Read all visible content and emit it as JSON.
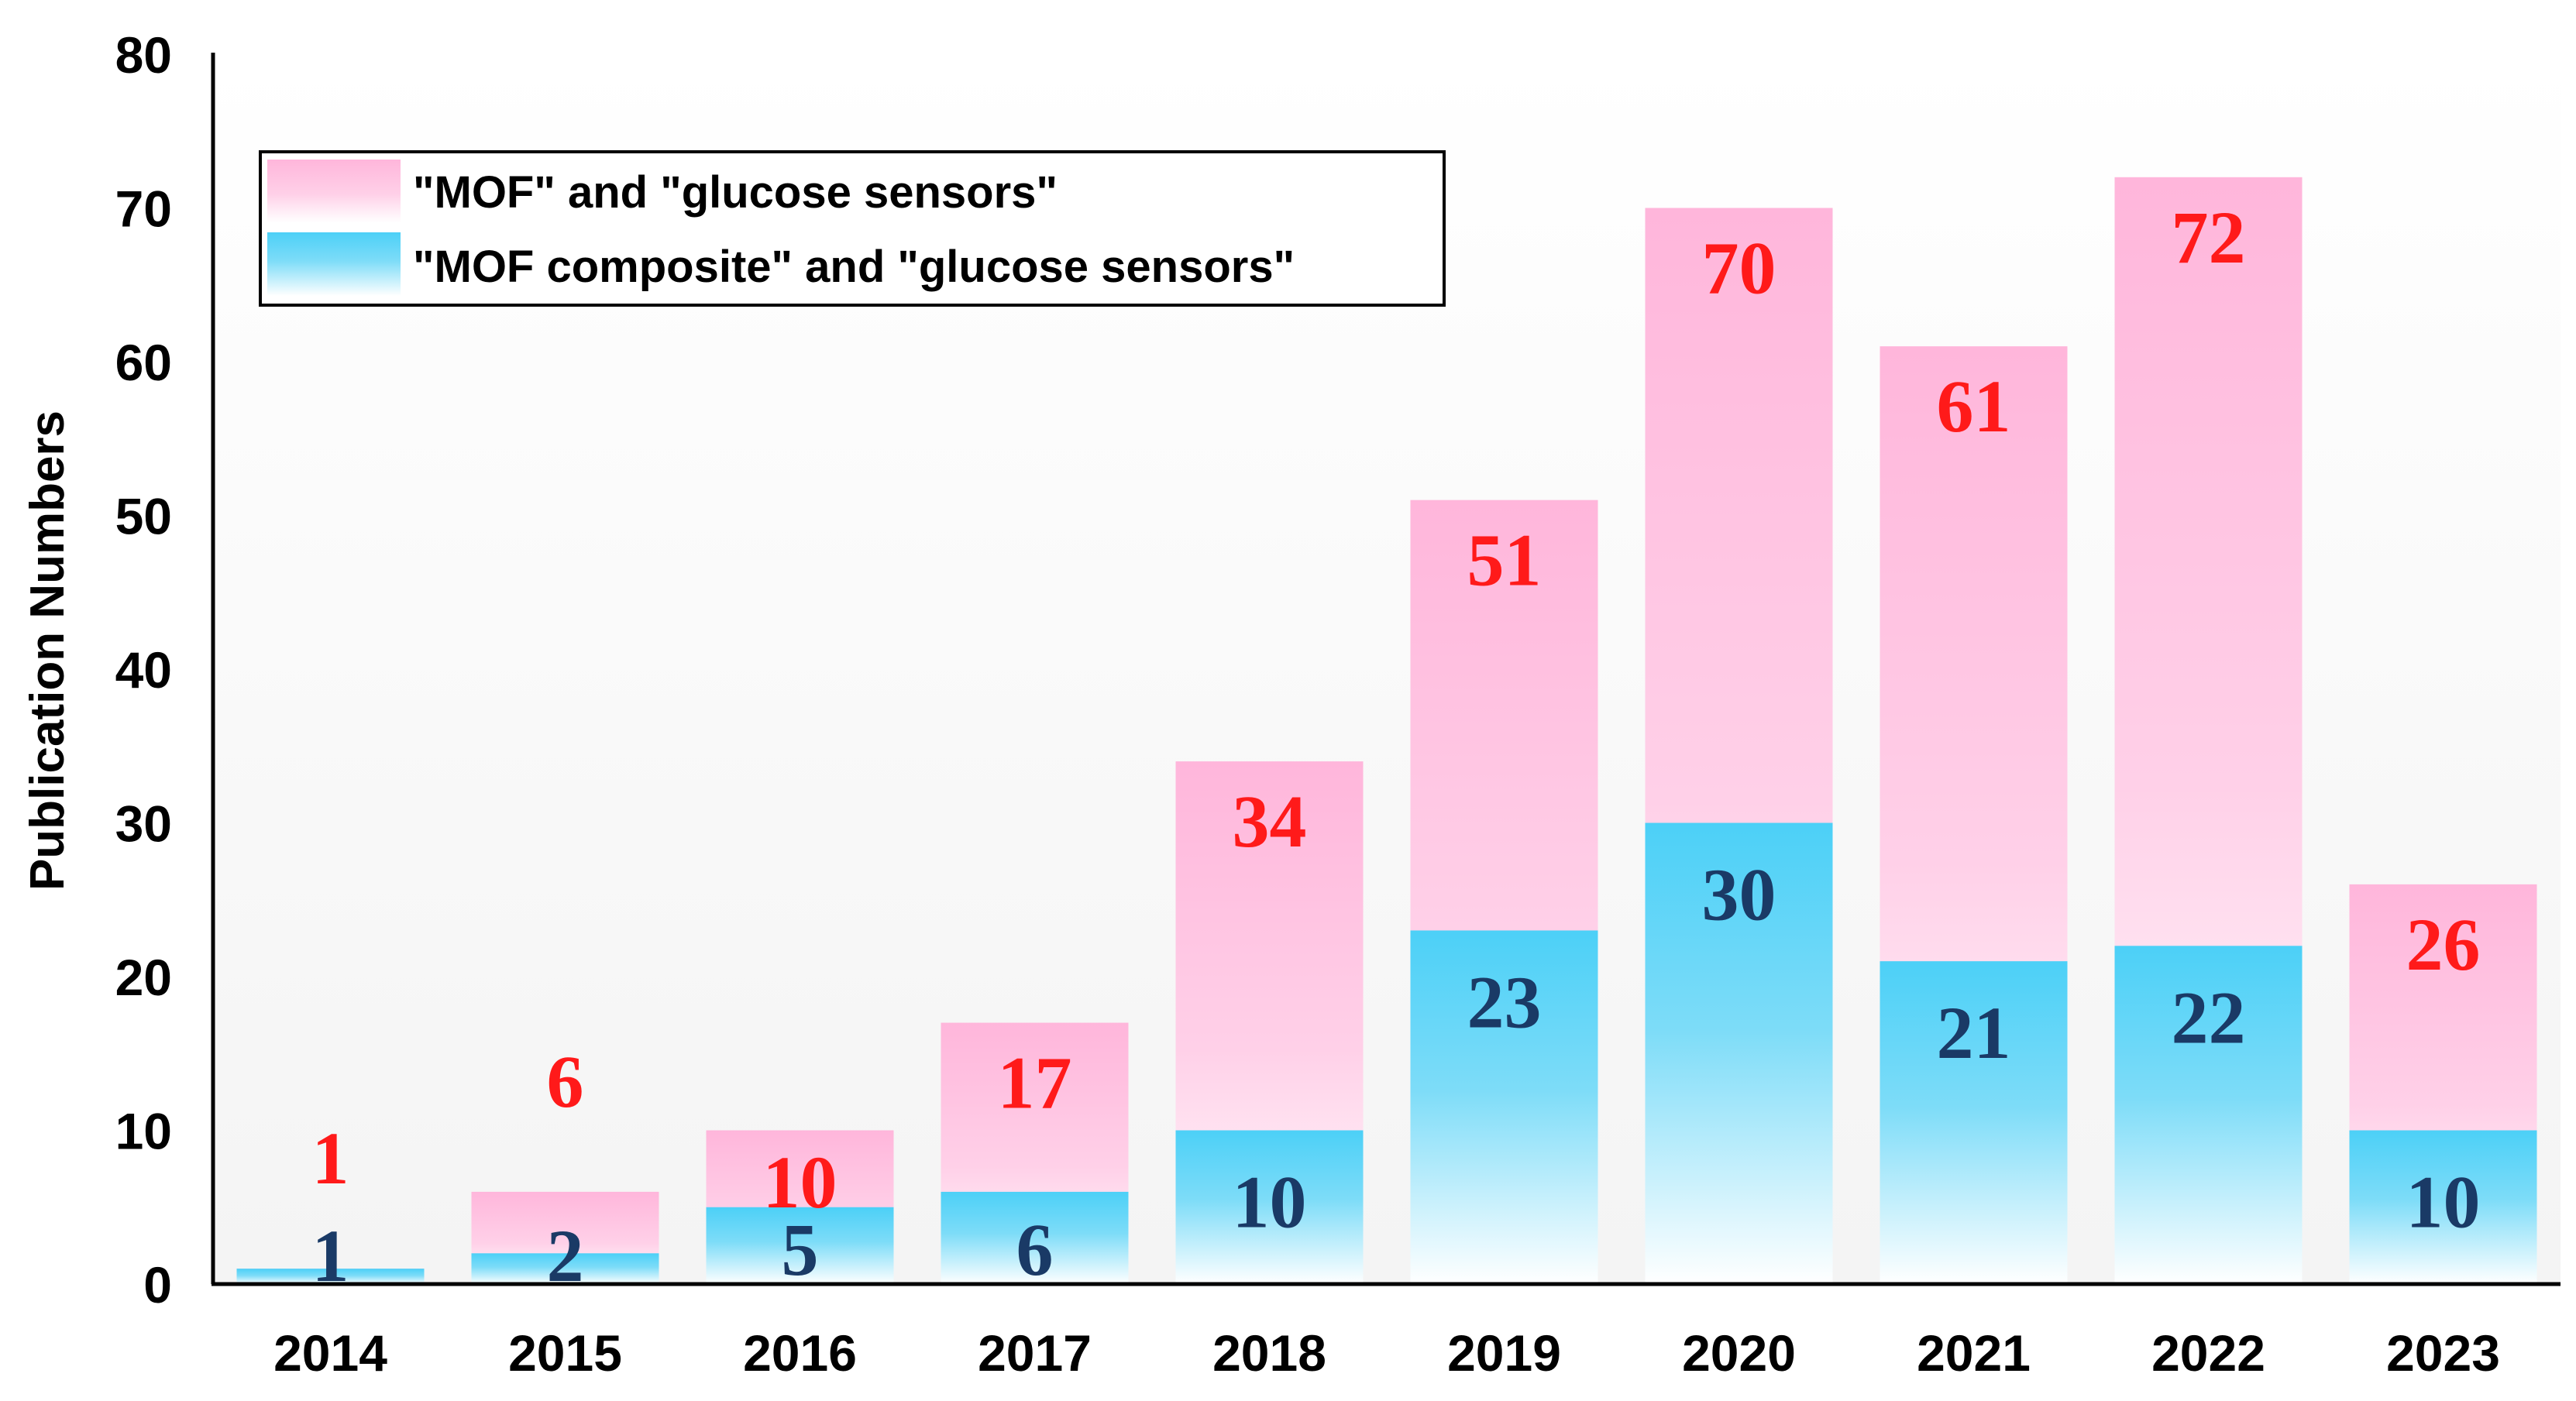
{
  "chart_data": {
    "type": "bar",
    "title": "",
    "xlabel": "",
    "ylabel": "Publication Numbers",
    "ylim": [
      0,
      80
    ],
    "yticks": [
      0,
      10,
      20,
      30,
      40,
      50,
      60,
      70,
      80
    ],
    "grid": false,
    "legend_position": "top-left",
    "categories": [
      "2014",
      "2015",
      "2016",
      "2017",
      "2018",
      "2019",
      "2020",
      "2021",
      "2022",
      "2023"
    ],
    "series": [
      {
        "name": "\"MOF\" and \"glucose sensors\"",
        "values": [
          1,
          6,
          10,
          17,
          34,
          51,
          70,
          61,
          72,
          26
        ],
        "color": "#ffb8dd",
        "label_color": "#ff1a1a"
      },
      {
        "name": "\"MOF composite\" and \"glucose sensors\"",
        "values": [
          1,
          2,
          5,
          6,
          10,
          23,
          30,
          21,
          22,
          10
        ],
        "color": "#4fd0f5",
        "label_color": "#1a3a66"
      }
    ]
  }
}
